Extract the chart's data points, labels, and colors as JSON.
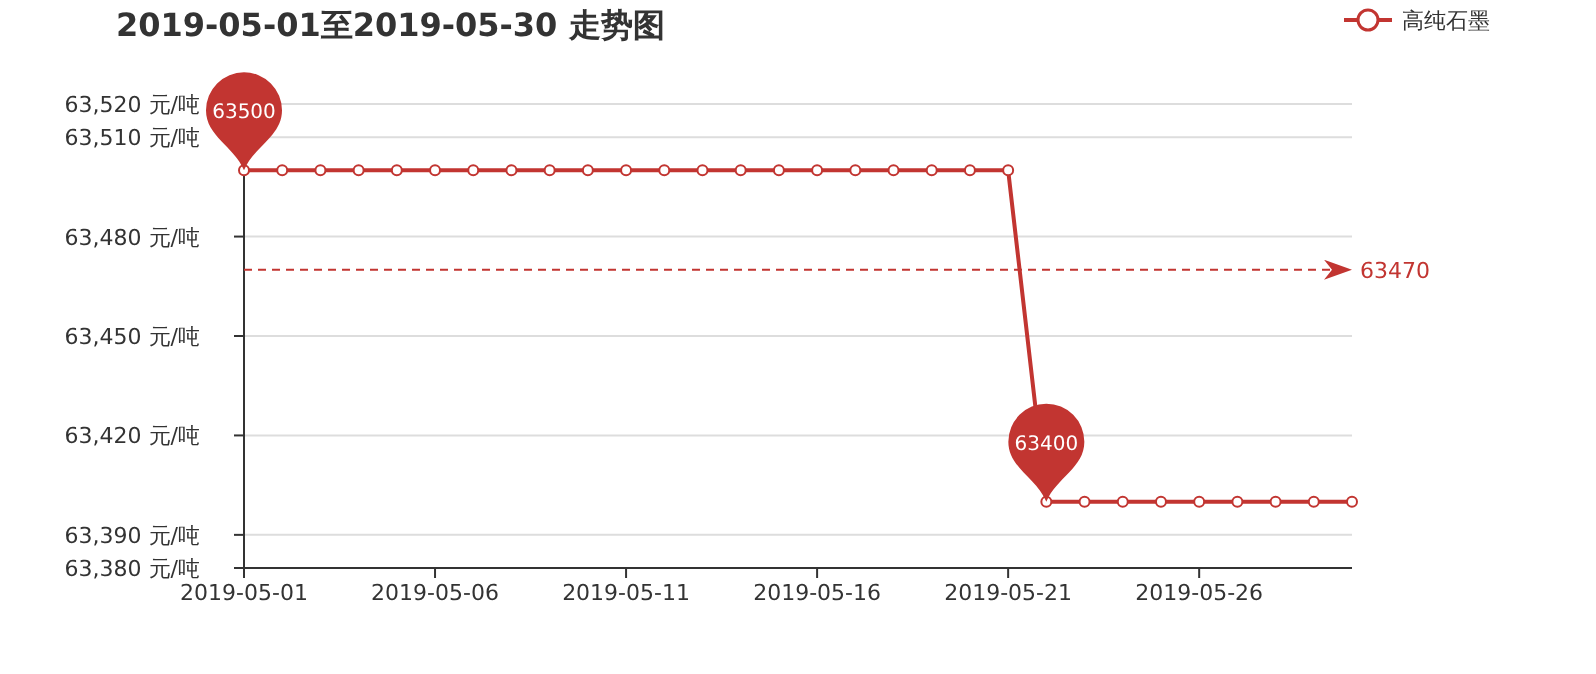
{
  "chart_data": {
    "type": "line",
    "title": "2019-05-01至2019-05-30 走势图",
    "categories": [
      "2019-05-01",
      null,
      null,
      null,
      null,
      "2019-05-06",
      null,
      null,
      null,
      null,
      "2019-05-11",
      null,
      null,
      null,
      null,
      "2019-05-16",
      null,
      null,
      null,
      null,
      "2019-05-21",
      null,
      null,
      null,
      null,
      "2019-05-26",
      null,
      null,
      null,
      null
    ],
    "series": [
      {
        "name": "高纯石墨",
        "color": "#c23531",
        "values": [
          63500,
          63500,
          63500,
          63500,
          63500,
          63500,
          63500,
          63500,
          63500,
          63500,
          63500,
          63500,
          63500,
          63500,
          63500,
          63500,
          63500,
          63500,
          63500,
          63500,
          63500,
          63400,
          63400,
          63400,
          63400,
          63400,
          63400,
          63400,
          63400,
          63400
        ]
      }
    ],
    "ylim": [
      63380,
      63520
    ],
    "yticks": [
      {
        "value": 63380,
        "label": "63,380 元/吨"
      },
      {
        "value": 63390,
        "label": "63,390 元/吨"
      },
      {
        "value": 63420,
        "label": "63,420 元/吨"
      },
      {
        "value": 63450,
        "label": "63,450 元/吨"
      },
      {
        "value": 63480,
        "label": "63,480 元/吨"
      },
      {
        "value": 63510,
        "label": "63,510 元/吨"
      },
      {
        "value": 63520,
        "label": "63,520 元/吨"
      }
    ],
    "grid": "y",
    "legend": "top right",
    "marker": "circle",
    "line_style": "solid",
    "ref_lines": [
      {
        "axis": "y",
        "value": 63470,
        "label": "63470",
        "color": "#c23531",
        "line_style": "dashed"
      }
    ],
    "annotations": [
      {
        "text": "63500",
        "x": "2019-05-01",
        "y": 63500
      },
      {
        "text": "63400",
        "y": 63400
      }
    ]
  }
}
